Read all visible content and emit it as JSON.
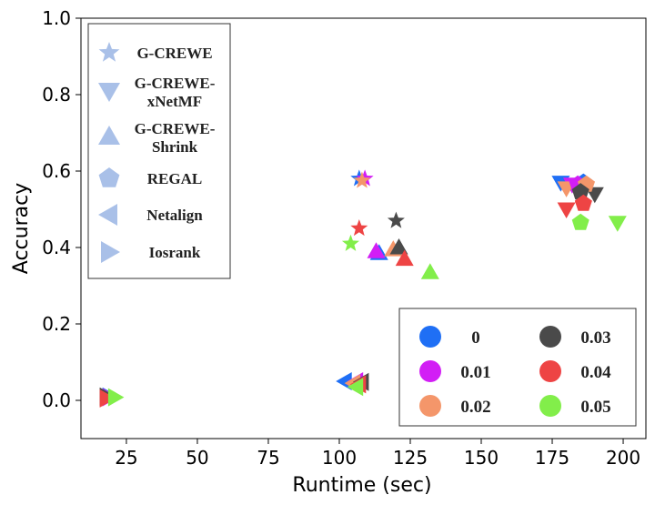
{
  "chart_data": {
    "type": "scatter",
    "xlabel": "Runtime (sec)",
    "ylabel": "Accuracy",
    "xlim": [
      9,
      208
    ],
    "ylim": [
      -0.1,
      1.0
    ],
    "xticks": [
      "25",
      "50",
      "75",
      "100",
      "125",
      "150",
      "175",
      "200"
    ],
    "xtick_values": [
      25,
      50,
      75,
      100,
      125,
      150,
      175,
      200
    ],
    "yticks": [
      "0.0",
      "0.2",
      "0.4",
      "0.6",
      "0.8",
      "1.0"
    ],
    "ytick_values": [
      0.0,
      0.2,
      0.4,
      0.6,
      0.8,
      1.0
    ],
    "grid": false,
    "method_legend": [
      {
        "name": "G-CREWE",
        "line1": "G-CREWE",
        "line2": "",
        "marker": "star"
      },
      {
        "name": "G-CREWE-xNetMF",
        "line1": "G-CREWE-",
        "line2": "xNetMF",
        "marker": "triangle-down"
      },
      {
        "name": "G-CREWE-Shrink",
        "line1": "G-CREWE-",
        "line2": "Shrink",
        "marker": "triangle-up"
      },
      {
        "name": "REGAL",
        "line1": "REGAL",
        "line2": "",
        "marker": "pentagon"
      },
      {
        "name": "Netalign",
        "line1": "Netalign",
        "line2": "",
        "marker": "triangle-left"
      },
      {
        "name": "Iosrank",
        "line1": "Iosrank",
        "line2": "",
        "marker": "triangle-right"
      }
    ],
    "noise_legend": [
      {
        "label": "0",
        "color": "#1f6ff5"
      },
      {
        "label": "0.01",
        "color": "#d21ef5"
      },
      {
        "label": "0.02",
        "color": "#f4966a"
      },
      {
        "label": "0.03",
        "color": "#4a4a4a"
      },
      {
        "label": "0.04",
        "color": "#ee4444"
      },
      {
        "label": "0.05",
        "color": "#82ee4a"
      }
    ],
    "legend_marker_color": "#a9c0e8",
    "series": [
      {
        "method": "G-CREWE",
        "marker": "star",
        "points": [
          {
            "noise": "0",
            "x": 107,
            "y": 0.58
          },
          {
            "noise": "0.01",
            "x": 109,
            "y": 0.58
          },
          {
            "noise": "0.02",
            "x": 108,
            "y": 0.575
          },
          {
            "noise": "0.03",
            "x": 120,
            "y": 0.47
          },
          {
            "noise": "0.04",
            "x": 107,
            "y": 0.45
          },
          {
            "noise": "0.05",
            "x": 104,
            "y": 0.41
          }
        ]
      },
      {
        "method": "G-CREWE-xNetMF",
        "marker": "triangle-down",
        "points": [
          {
            "noise": "0",
            "x": 178,
            "y": 0.57
          },
          {
            "noise": "0.01",
            "x": 182,
            "y": 0.565
          },
          {
            "noise": "0.02",
            "x": 180,
            "y": 0.555
          },
          {
            "noise": "0.03",
            "x": 190,
            "y": 0.54
          },
          {
            "noise": "0.04",
            "x": 180,
            "y": 0.5
          },
          {
            "noise": "0.05",
            "x": 198,
            "y": 0.465
          }
        ]
      },
      {
        "method": "G-CREWE-Shrink",
        "marker": "triangle-up",
        "points": [
          {
            "noise": "0",
            "x": 114,
            "y": 0.385
          },
          {
            "noise": "0.01",
            "x": 113,
            "y": 0.39
          },
          {
            "noise": "0.02",
            "x": 119,
            "y": 0.395
          },
          {
            "noise": "0.03",
            "x": 121,
            "y": 0.4
          },
          {
            "noise": "0.04",
            "x": 123,
            "y": 0.37
          },
          {
            "noise": "0.05",
            "x": 132,
            "y": 0.335
          }
        ]
      },
      {
        "method": "REGAL",
        "marker": "pentagon",
        "points": [
          {
            "noise": "0",
            "x": 186,
            "y": 0.57
          },
          {
            "noise": "0.01",
            "x": 184,
            "y": 0.565
          },
          {
            "noise": "0.02",
            "x": 187,
            "y": 0.565
          },
          {
            "noise": "0.03",
            "x": 185,
            "y": 0.545
          },
          {
            "noise": "0.04",
            "x": 186,
            "y": 0.515
          },
          {
            "noise": "0.05",
            "x": 185,
            "y": 0.465
          }
        ]
      },
      {
        "method": "Netalign",
        "marker": "triangle-left",
        "points": [
          {
            "noise": "0",
            "x": 102,
            "y": 0.05
          },
          {
            "noise": "0.01",
            "x": 106,
            "y": 0.05
          },
          {
            "noise": "0.02",
            "x": 105,
            "y": 0.045
          },
          {
            "noise": "0.03",
            "x": 108,
            "y": 0.048
          },
          {
            "noise": "0.04",
            "x": 107,
            "y": 0.042
          },
          {
            "noise": "0.05",
            "x": 106,
            "y": 0.035
          }
        ]
      },
      {
        "method": "Iosrank",
        "marker": "triangle-right",
        "points": [
          {
            "noise": "0",
            "x": 19,
            "y": 0.01
          },
          {
            "noise": "0.01",
            "x": 19,
            "y": 0.008
          },
          {
            "noise": "0.02",
            "x": 18,
            "y": 0.008
          },
          {
            "noise": "0.03",
            "x": 18,
            "y": 0.01
          },
          {
            "noise": "0.04",
            "x": 18,
            "y": 0.005
          },
          {
            "noise": "0.05",
            "x": 21,
            "y": 0.008
          }
        ]
      }
    ]
  }
}
